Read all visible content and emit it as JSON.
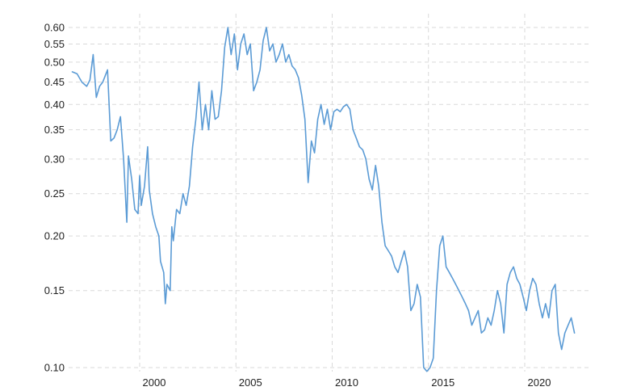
{
  "chart_data": {
    "type": "line",
    "title": "",
    "xlabel": "",
    "ylabel": "",
    "y_scale": "log",
    "ylim": [
      0.1,
      0.63
    ],
    "xlim": [
      "1996-07",
      "2022-12"
    ],
    "grid": true,
    "legend": "none",
    "x_ticks": [
      "2000",
      "2005",
      "2010",
      "2015",
      "2020"
    ],
    "y_ticks": [
      "0.10",
      "0.15",
      "0.20",
      "0.25",
      "0.30",
      "0.35",
      "0.40",
      "0.45",
      "0.50",
      "0.55",
      "0.60"
    ],
    "colors": {
      "series": "#5b9bd5",
      "grid": "#d9d9d9",
      "text": "#222222"
    },
    "series": [
      {
        "name": "",
        "points": [
          [
            "1996-07",
            0.475
          ],
          [
            "1996-10",
            0.47
          ],
          [
            "1997-01",
            0.45
          ],
          [
            "1997-04",
            0.44
          ],
          [
            "1997-06",
            0.455
          ],
          [
            "1997-08",
            0.52
          ],
          [
            "1997-10",
            0.415
          ],
          [
            "1997-12",
            0.44
          ],
          [
            "1998-02",
            0.45
          ],
          [
            "1998-05",
            0.48
          ],
          [
            "1998-07",
            0.33
          ],
          [
            "1998-09",
            0.335
          ],
          [
            "1998-11",
            0.35
          ],
          [
            "1999-01",
            0.375
          ],
          [
            "1999-03",
            0.3
          ],
          [
            "1999-05",
            0.215
          ],
          [
            "1999-06",
            0.305
          ],
          [
            "1999-08",
            0.27
          ],
          [
            "1999-10",
            0.23
          ],
          [
            "1999-12",
            0.225
          ],
          [
            "2000-01",
            0.275
          ],
          [
            "2000-02",
            0.235
          ],
          [
            "2000-04",
            0.26
          ],
          [
            "2000-06",
            0.32
          ],
          [
            "2000-07",
            0.255
          ],
          [
            "2000-09",
            0.225
          ],
          [
            "2000-11",
            0.21
          ],
          [
            "2001-01",
            0.2
          ],
          [
            "2001-02",
            0.175
          ],
          [
            "2001-04",
            0.165
          ],
          [
            "2001-05",
            0.14
          ],
          [
            "2001-06",
            0.155
          ],
          [
            "2001-08",
            0.15
          ],
          [
            "2001-09",
            0.21
          ],
          [
            "2001-10",
            0.195
          ],
          [
            "2001-12",
            0.23
          ],
          [
            "2002-02",
            0.225
          ],
          [
            "2002-04",
            0.25
          ],
          [
            "2002-06",
            0.235
          ],
          [
            "2002-08",
            0.26
          ],
          [
            "2002-10",
            0.32
          ],
          [
            "2002-12",
            0.37
          ],
          [
            "2003-02",
            0.45
          ],
          [
            "2003-04",
            0.35
          ],
          [
            "2003-06",
            0.4
          ],
          [
            "2003-08",
            0.35
          ],
          [
            "2003-10",
            0.43
          ],
          [
            "2003-12",
            0.37
          ],
          [
            "2004-02",
            0.375
          ],
          [
            "2004-04",
            0.43
          ],
          [
            "2004-06",
            0.54
          ],
          [
            "2004-08",
            0.6
          ],
          [
            "2004-10",
            0.52
          ],
          [
            "2004-12",
            0.58
          ],
          [
            "2005-02",
            0.48
          ],
          [
            "2005-04",
            0.55
          ],
          [
            "2005-06",
            0.58
          ],
          [
            "2005-08",
            0.52
          ],
          [
            "2005-10",
            0.55
          ],
          [
            "2005-12",
            0.43
          ],
          [
            "2006-02",
            0.45
          ],
          [
            "2006-04",
            0.48
          ],
          [
            "2006-06",
            0.56
          ],
          [
            "2006-08",
            0.6
          ],
          [
            "2006-10",
            0.53
          ],
          [
            "2006-12",
            0.55
          ],
          [
            "2007-02",
            0.5
          ],
          [
            "2007-04",
            0.52
          ],
          [
            "2007-06",
            0.55
          ],
          [
            "2007-08",
            0.5
          ],
          [
            "2007-10",
            0.52
          ],
          [
            "2007-12",
            0.49
          ],
          [
            "2008-02",
            0.48
          ],
          [
            "2008-04",
            0.46
          ],
          [
            "2008-06",
            0.42
          ],
          [
            "2008-08",
            0.37
          ],
          [
            "2008-10",
            0.265
          ],
          [
            "2008-12",
            0.33
          ],
          [
            "2009-02",
            0.31
          ],
          [
            "2009-04",
            0.37
          ],
          [
            "2009-06",
            0.4
          ],
          [
            "2009-08",
            0.36
          ],
          [
            "2009-10",
            0.39
          ],
          [
            "2009-12",
            0.35
          ],
          [
            "2010-02",
            0.385
          ],
          [
            "2010-04",
            0.39
          ],
          [
            "2010-06",
            0.385
          ],
          [
            "2010-08",
            0.395
          ],
          [
            "2010-10",
            0.4
          ],
          [
            "2010-12",
            0.39
          ],
          [
            "2011-02",
            0.35
          ],
          [
            "2011-04",
            0.335
          ],
          [
            "2011-06",
            0.32
          ],
          [
            "2011-08",
            0.315
          ],
          [
            "2011-10",
            0.3
          ],
          [
            "2011-12",
            0.27
          ],
          [
            "2012-02",
            0.255
          ],
          [
            "2012-04",
            0.29
          ],
          [
            "2012-06",
            0.26
          ],
          [
            "2012-08",
            0.215
          ],
          [
            "2012-10",
            0.19
          ],
          [
            "2012-12",
            0.185
          ],
          [
            "2013-02",
            0.18
          ],
          [
            "2013-04",
            0.17
          ],
          [
            "2013-06",
            0.165
          ],
          [
            "2013-08",
            0.175
          ],
          [
            "2013-10",
            0.185
          ],
          [
            "2013-12",
            0.17
          ],
          [
            "2014-02",
            0.135
          ],
          [
            "2014-04",
            0.14
          ],
          [
            "2014-06",
            0.155
          ],
          [
            "2014-08",
            0.145
          ],
          [
            "2014-10",
            0.1
          ],
          [
            "2014-12",
            0.098
          ],
          [
            "2015-02",
            0.1
          ],
          [
            "2015-04",
            0.105
          ],
          [
            "2015-06",
            0.15
          ],
          [
            "2015-08",
            0.19
          ],
          [
            "2015-10",
            0.2
          ],
          [
            "2015-12",
            0.17
          ],
          [
            "2016-02",
            0.165
          ],
          [
            "2016-04",
            0.16
          ],
          [
            "2016-06",
            0.155
          ],
          [
            "2016-08",
            0.15
          ],
          [
            "2016-10",
            0.145
          ],
          [
            "2016-12",
            0.14
          ],
          [
            "2017-02",
            0.135
          ],
          [
            "2017-04",
            0.125
          ],
          [
            "2017-06",
            0.13
          ],
          [
            "2017-08",
            0.135
          ],
          [
            "2017-10",
            0.12
          ],
          [
            "2017-12",
            0.122
          ],
          [
            "2018-02",
            0.13
          ],
          [
            "2018-04",
            0.125
          ],
          [
            "2018-06",
            0.135
          ],
          [
            "2018-08",
            0.15
          ],
          [
            "2018-10",
            0.14
          ],
          [
            "2018-12",
            0.12
          ],
          [
            "2019-02",
            0.155
          ],
          [
            "2019-04",
            0.165
          ],
          [
            "2019-06",
            0.17
          ],
          [
            "2019-08",
            0.16
          ],
          [
            "2019-10",
            0.155
          ],
          [
            "2019-12",
            0.145
          ],
          [
            "2020-02",
            0.135
          ],
          [
            "2020-04",
            0.15
          ],
          [
            "2020-06",
            0.16
          ],
          [
            "2020-08",
            0.155
          ],
          [
            "2020-10",
            0.14
          ],
          [
            "2020-12",
            0.13
          ],
          [
            "2021-02",
            0.14
          ],
          [
            "2021-04",
            0.13
          ],
          [
            "2021-06",
            0.15
          ],
          [
            "2021-08",
            0.155
          ],
          [
            "2021-10",
            0.12
          ],
          [
            "2021-12",
            0.11
          ],
          [
            "2022-02",
            0.12
          ],
          [
            "2022-04",
            0.125
          ],
          [
            "2022-06",
            0.13
          ],
          [
            "2022-08",
            0.12
          ]
        ]
      }
    ]
  }
}
